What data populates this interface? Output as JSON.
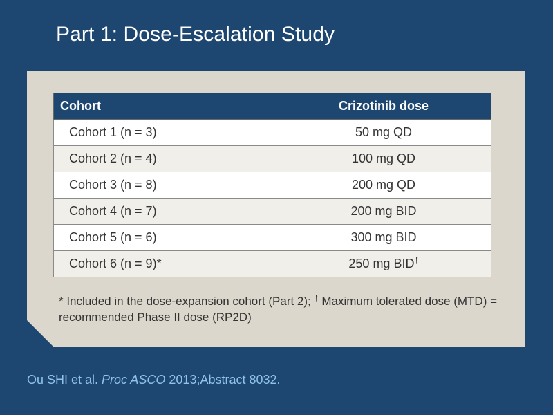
{
  "slide": {
    "title": "Part 1: Dose-Escalation Study"
  },
  "table": {
    "headers": {
      "cohort": "Cohort",
      "dose": "Crizotinib dose"
    },
    "rows": [
      {
        "cohort": "Cohort 1 (n = 3)",
        "dose": "50 mg QD",
        "dose_mark": ""
      },
      {
        "cohort": "Cohort 2 (n = 4)",
        "dose": "100 mg QD",
        "dose_mark": ""
      },
      {
        "cohort": "Cohort 3 (n = 8)",
        "dose": "200 mg QD",
        "dose_mark": ""
      },
      {
        "cohort": "Cohort 4 (n = 7)",
        "dose": "200 mg BID",
        "dose_mark": ""
      },
      {
        "cohort": "Cohort 5 (n = 6)",
        "dose": "300 mg BID",
        "dose_mark": ""
      },
      {
        "cohort": "Cohort 6 (n = 9)*",
        "dose": "250 mg BID",
        "dose_mark": "†"
      }
    ]
  },
  "footnote": {
    "part1": "* Included in the dose-expansion cohort (Part 2); ",
    "dagger": "†",
    "part2": " Maximum tolerated dose (MTD) = recommended Phase II dose (RP2D)"
  },
  "citation": {
    "authors": "Ou SHI et al. ",
    "journal": "Proc ASCO",
    "rest": " 2013;Abstract 8032."
  },
  "colors": {
    "background": "#1d4670",
    "panel": "#dbd7cc",
    "header_row": "#1d4670",
    "citation": "#8fc3e8"
  }
}
